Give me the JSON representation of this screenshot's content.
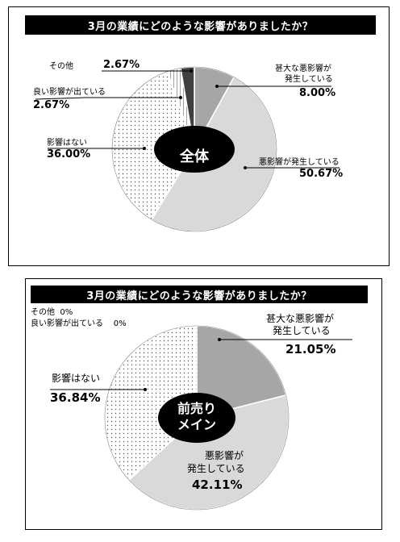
{
  "chart_data": [
    {
      "type": "pie",
      "title": "3月の業績にどのような影響がありましたか？",
      "center_label": "全体",
      "slices": [
        {
          "label": "甚大な悪影響が発生している",
          "value": 8.0,
          "display": "8.00%",
          "pattern": "gray-dark"
        },
        {
          "label": "悪影響が発生している",
          "value": 50.67,
          "display": "50.67%",
          "pattern": "gray-light"
        },
        {
          "label": "影響はない",
          "value": 36.0,
          "display": "36.00%",
          "pattern": "dots"
        },
        {
          "label": "良い影響が出ている",
          "value": 2.67,
          "display": "2.67%",
          "pattern": "hatch"
        },
        {
          "label": "その他",
          "value": 2.67,
          "display": "2.67%",
          "pattern": "dark"
        }
      ]
    },
    {
      "type": "pie",
      "title": "3月の業績にどのような影響がありましたか？",
      "center_label": "前売り\nメイン",
      "center_lines": [
        "前売り",
        "メイン"
      ],
      "slices": [
        {
          "label": "甚大な悪影響が発生している",
          "value": 21.05,
          "display": "21.05%",
          "pattern": "gray-dark"
        },
        {
          "label": "悪影響が発生している",
          "value": 42.11,
          "display": "42.11%",
          "pattern": "gray-light"
        },
        {
          "label": "影響はない",
          "value": 36.84,
          "display": "36.84%",
          "pattern": "dots"
        },
        {
          "label": "良い影響が出ている",
          "value": 0,
          "display": "0%",
          "pattern": "hatch"
        },
        {
          "label": "その他",
          "value": 0,
          "display": "0%",
          "pattern": "dark"
        }
      ]
    }
  ],
  "chart1_labels": {
    "other": "その他",
    "good": "良い影響が出ている",
    "none": "影響はない",
    "severe_l1": "甚大な悪影響が",
    "severe_l2": "発生している",
    "bad": "悪影響が発生している"
  },
  "chart2_labels": {
    "other": "その他",
    "good": "良い影響が出ている",
    "none": "影響はない",
    "severe_l1": "甚大な悪影響が",
    "severe_l2": "発生している",
    "bad_l1": "悪影響が",
    "bad_l2": "発生している"
  },
  "colors": {
    "gray_dark": "#a6a6a6",
    "gray_light": "#d9d9d9",
    "dark": "#404040",
    "center": "#000000"
  }
}
